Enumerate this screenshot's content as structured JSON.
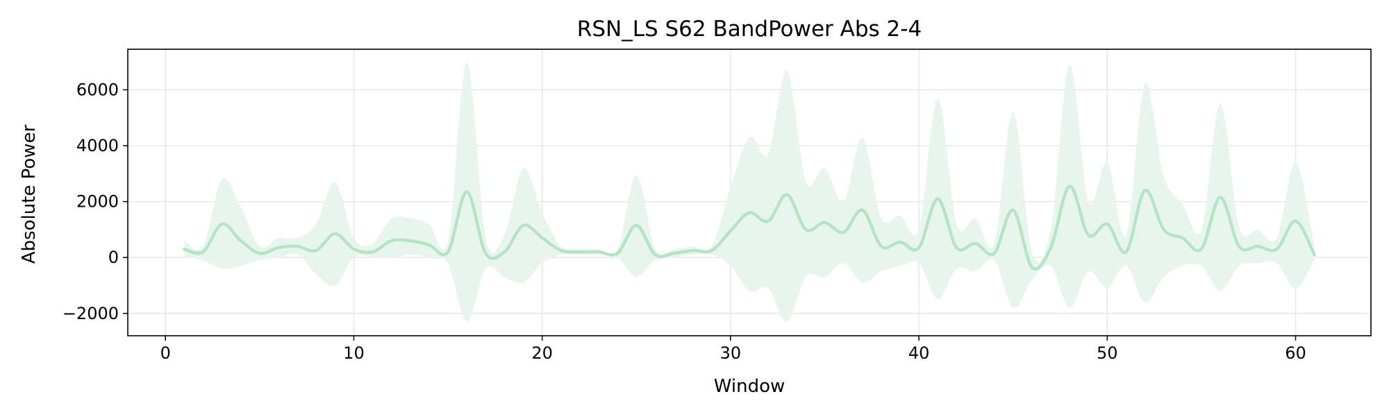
{
  "chart_data": {
    "type": "line",
    "title": "RSN_LS S62 BandPower Abs 2-4",
    "xlabel": "Window",
    "ylabel": "Absolute Power",
    "xlim": [
      -2,
      64
    ],
    "ylim": [
      -2800,
      7450
    ],
    "xticks": [
      0,
      10,
      20,
      30,
      40,
      50,
      60
    ],
    "xtick_labels": [
      "0",
      "10",
      "20",
      "30",
      "40",
      "50",
      "60"
    ],
    "yticks": [
      -2000,
      0,
      2000,
      4000,
      6000
    ],
    "ytick_labels": [
      "−2000",
      "0",
      "2000",
      "4000",
      "6000"
    ],
    "grid": true,
    "colors": {
      "line": "#b5e4c5",
      "band": "#e8f5ec",
      "grid": "#e6e6e6",
      "axes": "#000000"
    },
    "series": [
      {
        "x": [
          1,
          2,
          3,
          4,
          5,
          6,
          7,
          8,
          9,
          10,
          11,
          12,
          13,
          14,
          15,
          16,
          17,
          18,
          19,
          20,
          21,
          22,
          23,
          24,
          25,
          26,
          27,
          28,
          29,
          30,
          31,
          32,
          33,
          34,
          35,
          36,
          37,
          38,
          39,
          40,
          41,
          42,
          43,
          44,
          45,
          46,
          47,
          48,
          49,
          50,
          51,
          52,
          53,
          54,
          55,
          56,
          57,
          58,
          59,
          60,
          61
        ],
        "mean": [
          300,
          200,
          1200,
          600,
          150,
          350,
          400,
          250,
          850,
          300,
          200,
          600,
          600,
          450,
          200,
          2350,
          150,
          200,
          1150,
          700,
          250,
          200,
          200,
          150,
          1150,
          100,
          150,
          250,
          250,
          950,
          1600,
          1300,
          2250,
          1000,
          1250,
          900,
          1700,
          400,
          550,
          350,
          2100,
          350,
          500,
          150,
          1700,
          -350,
          350,
          2550,
          800,
          1200,
          200,
          2400,
          1000,
          700,
          300,
          2150,
          400,
          400,
          300,
          1300,
          100
        ],
        "upper": [
          600,
          400,
          2800,
          1800,
          400,
          700,
          700,
          1200,
          2700,
          700,
          500,
          1400,
          1400,
          1200,
          600,
          7000,
          700,
          800,
          3200,
          1600,
          400,
          300,
          300,
          300,
          2950,
          300,
          300,
          400,
          400,
          2500,
          4300,
          3700,
          6700,
          2700,
          3200,
          2000,
          4300,
          1400,
          1500,
          1000,
          5700,
          1200,
          1400,
          500,
          5200,
          200,
          1000,
          6900,
          2000,
          3400,
          800,
          6200,
          2900,
          1900,
          1000,
          5500,
          1100,
          1000,
          700,
          3400,
          400
        ],
        "lower": [
          0,
          -100,
          -400,
          -300,
          -100,
          0,
          100,
          -600,
          -1000,
          0,
          0,
          0,
          100,
          0,
          -200,
          -2300,
          -400,
          -700,
          -900,
          -200,
          100,
          100,
          100,
          0,
          -700,
          -100,
          0,
          100,
          100,
          -300,
          -1200,
          -1100,
          -2300,
          -700,
          -700,
          -200,
          -900,
          -500,
          -300,
          -200,
          -1500,
          -400,
          -500,
          -100,
          -1800,
          -800,
          -300,
          -1800,
          -500,
          -1100,
          -300,
          -1600,
          -700,
          -300,
          -300,
          -1200,
          -300,
          -200,
          -200,
          -1100,
          -100
        ]
      }
    ]
  }
}
